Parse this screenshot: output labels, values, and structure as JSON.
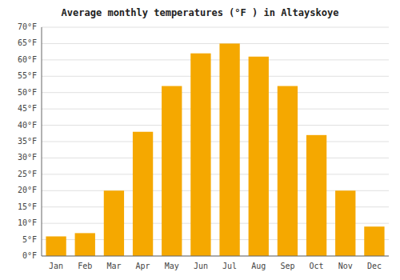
{
  "chart_data": {
    "type": "bar",
    "title": "Average monthly temperatures (°F ) in Altayskoye",
    "categories": [
      "Jan",
      "Feb",
      "Mar",
      "Apr",
      "May",
      "Jun",
      "Jul",
      "Aug",
      "Sep",
      "Oct",
      "Nov",
      "Dec"
    ],
    "values": [
      6,
      7,
      20,
      38,
      52,
      62,
      65,
      61,
      52,
      37,
      20,
      9
    ],
    "color": "#F5A800",
    "ylim": [
      0,
      70
    ],
    "yticks": [
      {
        "value": 0,
        "label": "0°F"
      },
      {
        "value": 5,
        "label": "5°F"
      },
      {
        "value": 10,
        "label": "10°F"
      },
      {
        "value": 15,
        "label": "15°F"
      },
      {
        "value": 20,
        "label": "20°F"
      },
      {
        "value": 25,
        "label": "25°F"
      },
      {
        "value": 30,
        "label": "30°F"
      },
      {
        "value": 35,
        "label": "35°F"
      },
      {
        "value": 40,
        "label": "40°F"
      },
      {
        "value": 45,
        "label": "45°F"
      },
      {
        "value": 50,
        "label": "50°F"
      },
      {
        "value": 55,
        "label": "55°F"
      },
      {
        "value": 60,
        "label": "60°F"
      },
      {
        "value": 65,
        "label": "65°F"
      },
      {
        "value": 70,
        "label": "70°F"
      }
    ],
    "grid": true
  }
}
